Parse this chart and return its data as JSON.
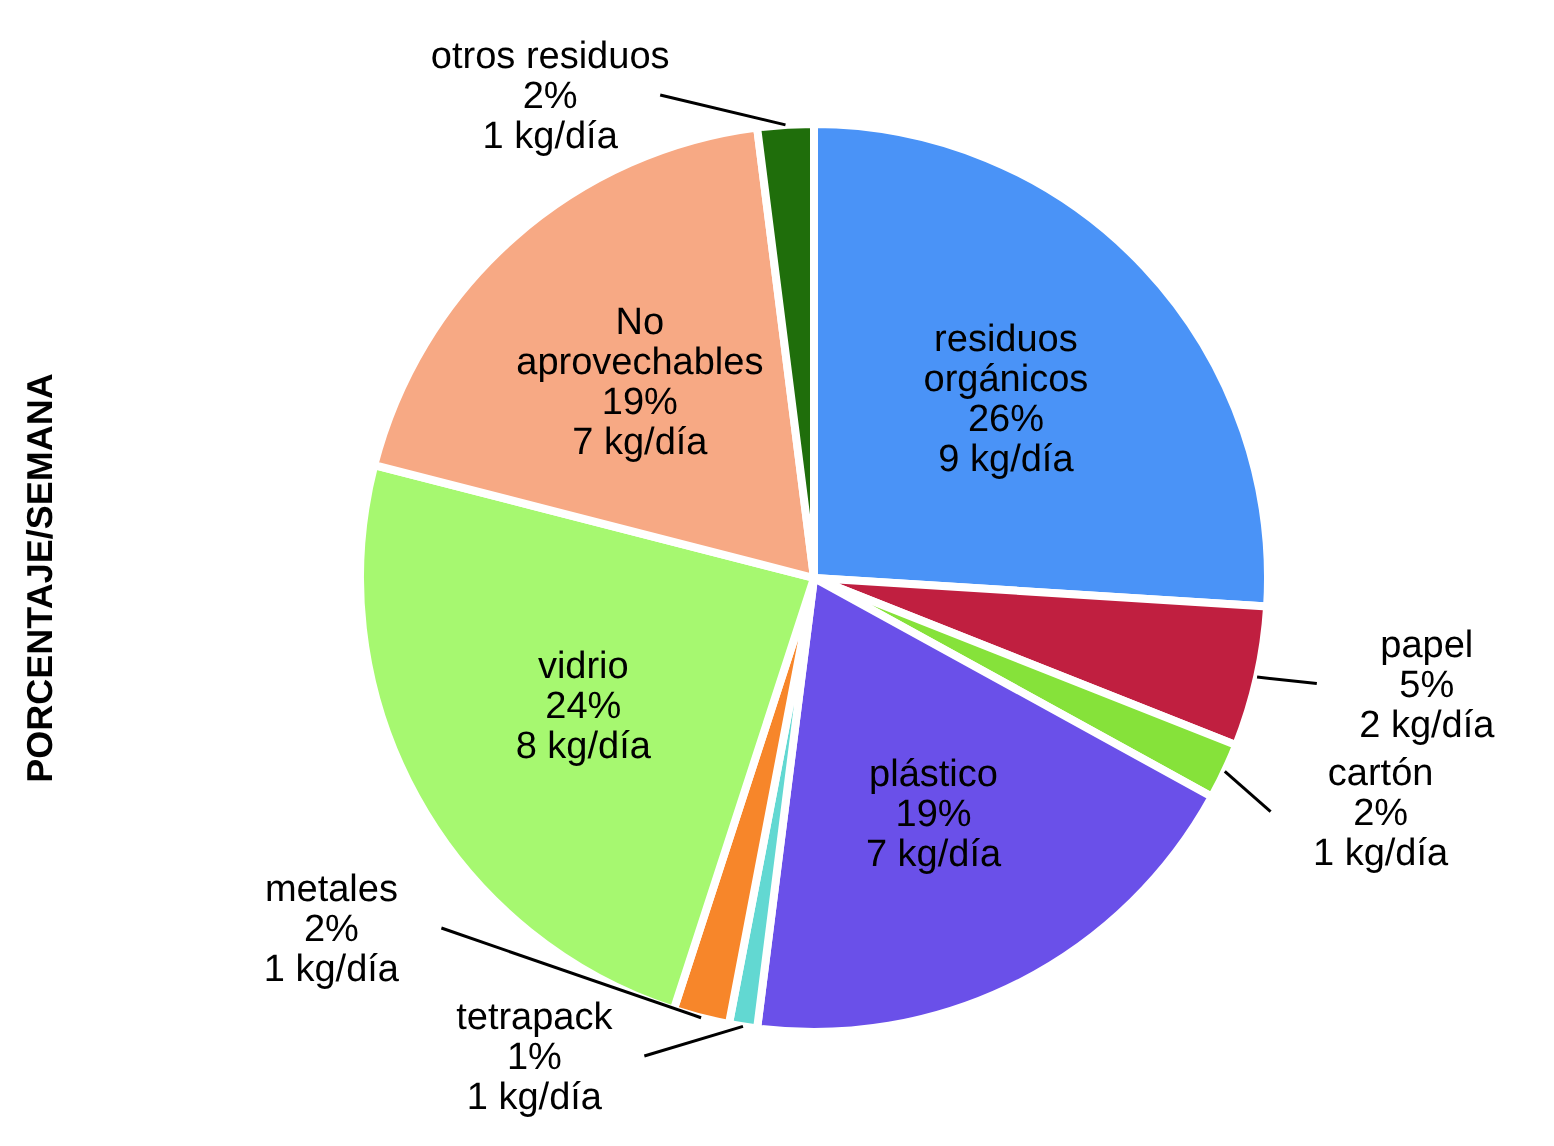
{
  "chart_data": {
    "type": "pie",
    "ylabel": "PORCENTAJE/SEMANA",
    "categories": [
      "residuos orgánicos",
      "papel",
      "cartón",
      "plástico",
      "tetrapack",
      "metales",
      "vidrio",
      "No aprovechables",
      "otros residuos"
    ],
    "values": [
      26,
      5,
      2,
      19,
      1,
      2,
      24,
      19,
      2
    ],
    "colors": [
      "#4a93f7",
      "#c01f40",
      "#86e23a",
      "#6a50e9",
      "#62d8d2",
      "#f7862a",
      "#a6f870",
      "#f7a984",
      "#1f6e0b"
    ],
    "value_labels": [
      "26%\n9 kg/día",
      "5%\n2 kg/día",
      "2%\n1 kg/día",
      "19%\n7 kg/día",
      "1%\n1 kg/día",
      "2%\n1 kg/día",
      "24%\n8 kg/día",
      "19%\n7 kg/día",
      "2%\n1 kg/día"
    ]
  }
}
